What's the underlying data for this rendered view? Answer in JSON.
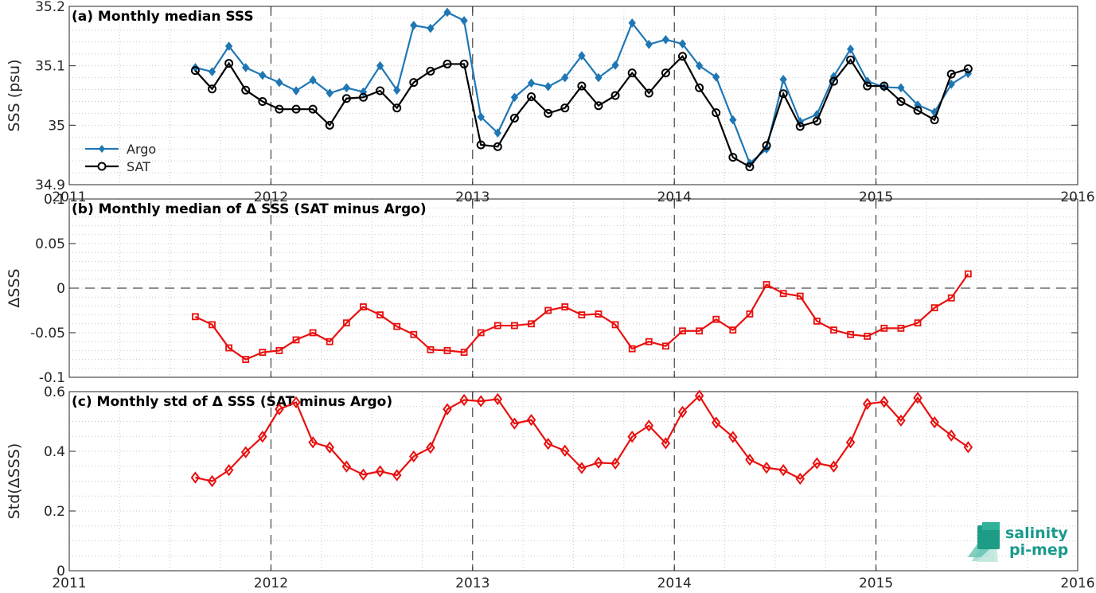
{
  "chart_data": [
    {
      "type": "line",
      "title": "(a) Monthly median SSS",
      "ylabel": "SSS (psu)",
      "ylim": [
        34.9,
        35.2
      ],
      "yticks": [
        "34.9",
        "35",
        "35.1",
        "35.2"
      ],
      "xlim": [
        2011,
        2016
      ],
      "xticks": [
        "2011",
        "2012",
        "2013",
        "2014",
        "2015",
        "2016"
      ],
      "grid": "minor-dotted",
      "legend": "bottom-left",
      "x_start": 2011.625,
      "x_step": 0.0833,
      "series": [
        {
          "name": "Argo",
          "color": "#1f77b4",
          "marker": "diamond-filled",
          "values": [
            35.097,
            35.09,
            35.133,
            35.097,
            35.084,
            35.072,
            35.058,
            35.076,
            35.054,
            35.063,
            35.056,
            35.1,
            35.059,
            35.168,
            35.163,
            35.19,
            35.176,
            35.014,
            34.987,
            35.047,
            35.071,
            35.065,
            35.08,
            35.117,
            35.08,
            35.101,
            35.172,
            35.136,
            35.144,
            35.137,
            35.1,
            35.081,
            35.009,
            34.936,
            34.96,
            35.077,
            35.006,
            35.018,
            35.082,
            35.128,
            35.074,
            35.064,
            35.063,
            35.034,
            35.022,
            35.069,
            35.087
          ]
        },
        {
          "name": "SAT",
          "color": "#000000",
          "marker": "circle-open",
          "values": [
            35.092,
            35.061,
            35.104,
            35.059,
            35.04,
            35.027,
            35.027,
            35.027,
            35.0,
            35.045,
            35.047,
            35.058,
            35.029,
            35.072,
            35.091,
            35.103,
            35.103,
            34.967,
            34.964,
            35.012,
            35.048,
            35.02,
            35.029,
            35.066,
            35.033,
            35.05,
            35.088,
            35.054,
            35.088,
            35.116,
            35.063,
            35.021,
            34.946,
            34.93,
            34.966,
            35.053,
            34.998,
            35.007,
            35.074,
            35.11,
            35.066,
            35.066,
            35.04,
            35.025,
            35.009,
            35.086,
            35.095
          ]
        }
      ]
    },
    {
      "type": "line",
      "title": "(b) Monthly median of Δ SSS (SAT minus Argo)",
      "ylabel": "ΔSSS",
      "ylim": [
        -0.1,
        0.1
      ],
      "yticks": [
        "-0.1",
        "-0.05",
        "0",
        "0.05",
        "0.1"
      ],
      "xlim": [
        2011,
        2016
      ],
      "zero_line": true,
      "grid": "minor-dotted",
      "x_start": 2011.625,
      "x_step": 0.0833,
      "series": [
        {
          "name": "",
          "color": "#e8100f",
          "marker": "square-open",
          "values": [
            -0.032,
            -0.041,
            -0.067,
            -0.08,
            -0.072,
            -0.07,
            -0.058,
            -0.05,
            -0.06,
            -0.039,
            -0.021,
            -0.03,
            -0.043,
            -0.052,
            -0.069,
            -0.07,
            -0.072,
            -0.05,
            -0.042,
            -0.042,
            -0.04,
            -0.025,
            -0.021,
            -0.03,
            -0.029,
            -0.041,
            -0.068,
            -0.06,
            -0.065,
            -0.048,
            -0.048,
            -0.035,
            -0.047,
            -0.029,
            0.004,
            -0.006,
            -0.009,
            -0.037,
            -0.047,
            -0.052,
            -0.054,
            -0.045,
            -0.045,
            -0.039,
            -0.022,
            -0.011,
            0.016
          ]
        }
      ]
    },
    {
      "type": "line",
      "title": "(c) Monthly std of Δ SSS (SAT minus Argo)",
      "ylabel": "Std(ΔSSS)",
      "ylim": [
        0,
        0.6
      ],
      "yticks": [
        "0",
        "0.2",
        "0.4",
        "0.6"
      ],
      "xlim": [
        2011,
        2016
      ],
      "xticks": [
        "2011",
        "2012",
        "2013",
        "2014",
        "2015",
        "2016"
      ],
      "grid": "minor-dotted",
      "x_start": 2011.625,
      "x_step": 0.0833,
      "series": [
        {
          "name": "",
          "color": "#e8100f",
          "marker": "diamond-open",
          "values": [
            0.312,
            0.3,
            0.337,
            0.397,
            0.449,
            0.541,
            0.564,
            0.43,
            0.413,
            0.349,
            0.322,
            0.333,
            0.32,
            0.383,
            0.412,
            0.541,
            0.572,
            0.568,
            0.575,
            0.493,
            0.505,
            0.425,
            0.402,
            0.344,
            0.362,
            0.359,
            0.449,
            0.486,
            0.427,
            0.532,
            0.586,
            0.496,
            0.448,
            0.372,
            0.345,
            0.337,
            0.308,
            0.36,
            0.349,
            0.43,
            0.559,
            0.566,
            0.503,
            0.579,
            0.497,
            0.453,
            0.414
          ]
        }
      ]
    }
  ],
  "logo": {
    "line1": "salinity",
    "line2": "pi-mep",
    "color": "#1a9a8c"
  }
}
